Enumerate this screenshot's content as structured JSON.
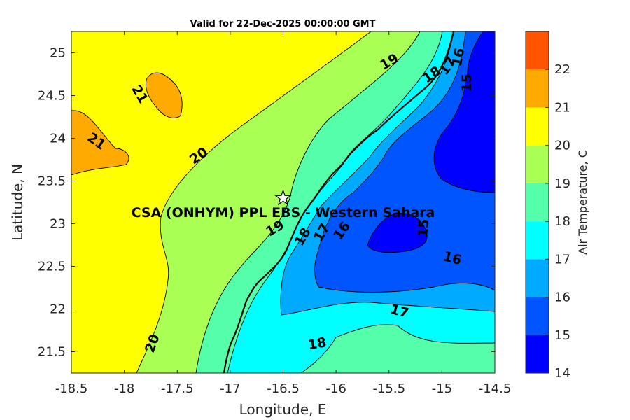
{
  "chart_data": {
    "type": "contour",
    "title": "Valid for 22-Dec-2025 00:00:00 GMT",
    "xlabel": "Longitude, E",
    "ylabel": "Latitude, N",
    "xlim": [
      -18.5,
      -14.5
    ],
    "ylim": [
      21.25,
      25.25
    ],
    "xticks": [
      "-18.5",
      "-18",
      "-17.5",
      "-17",
      "-16.5",
      "-16",
      "-15.5",
      "-15",
      "-14.5"
    ],
    "yticks": [
      "21.5",
      "22",
      "22.5",
      "23",
      "23.5",
      "24",
      "24.5",
      "25"
    ],
    "colorbar": {
      "label": "Air Temperature, C",
      "ticks": [
        "14",
        "15",
        "16",
        "17",
        "18",
        "19",
        "20",
        "21",
        "22"
      ],
      "levels": [
        {
          "from": 14,
          "to": 15,
          "color": "#0000ff"
        },
        {
          "from": 15,
          "to": 16,
          "color": "#0055ff"
        },
        {
          "from": 16,
          "to": 17,
          "color": "#00aaff"
        },
        {
          "from": 17,
          "to": 18,
          "color": "#00ffff"
        },
        {
          "from": 18,
          "to": 19,
          "color": "#55ffaa"
        },
        {
          "from": 19,
          "to": 20,
          "color": "#aaff55"
        },
        {
          "from": 20,
          "to": 21,
          "color": "#ffff00"
        },
        {
          "from": 21,
          "to": 22,
          "color": "#ffaa00"
        },
        {
          "from": 22,
          "to": 23,
          "color": "#ff5500"
        }
      ]
    },
    "contour_labels": [
      {
        "text": "21",
        "lon": -17.85,
        "lat": 24.52
      },
      {
        "text": "21",
        "lon": -18.26,
        "lat": 23.97
      },
      {
        "text": "20",
        "lon": -17.3,
        "lat": 23.8
      },
      {
        "text": "20",
        "lon": -17.74,
        "lat": 21.6
      },
      {
        "text": "19",
        "lon": -15.5,
        "lat": 24.9
      },
      {
        "text": "18",
        "lon": -15.1,
        "lat": 24.75
      },
      {
        "text": "17",
        "lon": -14.95,
        "lat": 24.85
      },
      {
        "text": "16",
        "lon": -14.85,
        "lat": 24.95
      },
      {
        "text": "15",
        "lon": -14.77,
        "lat": 24.65
      },
      {
        "text": "19",
        "lon": -16.58,
        "lat": 22.95
      },
      {
        "text": "18",
        "lon": -16.32,
        "lat": 22.85
      },
      {
        "text": "17",
        "lon": -16.14,
        "lat": 22.9
      },
      {
        "text": "16",
        "lon": -15.95,
        "lat": 22.92
      },
      {
        "text": "15",
        "lon": -15.18,
        "lat": 22.95
      },
      {
        "text": "16",
        "lon": -14.9,
        "lat": 22.6
      },
      {
        "text": "17",
        "lon": -15.4,
        "lat": 21.98
      },
      {
        "text": "18",
        "lon": -16.18,
        "lat": 21.6
      }
    ],
    "station": {
      "name": "CSA (ONHYM) PPL EBS - Western Sahara",
      "lon": -16.5,
      "lat": 23.3
    }
  }
}
